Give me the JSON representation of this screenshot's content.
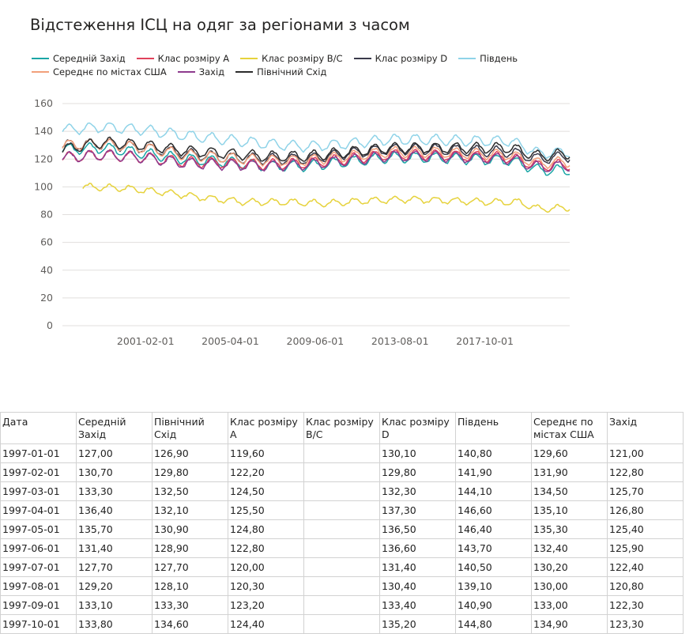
{
  "title": "Відстеження ІСЦ на одяг за регіонами з часом",
  "chart_data": {
    "type": "line",
    "title": "Відстеження ІСЦ на одяг за регіонами з часом",
    "x_ticks": [
      "2001-02-01",
      "2005-04-01",
      "2009-06-01",
      "2013-08-01",
      "2017-10-01"
    ],
    "y_ticks": [
      0,
      20,
      40,
      60,
      80,
      100,
      120,
      140,
      160
    ],
    "ylim": [
      0,
      160
    ],
    "xlim": [
      "1997-01-01",
      "2021-12-01"
    ],
    "grid": true,
    "legend_position": "top-left",
    "series": [
      {
        "name": "Середній Захід",
        "color": "#1aa6a6",
        "anchors": [
          [
            "1997-01-01",
            127
          ],
          [
            "1999-01-01",
            128
          ],
          [
            "2001-01-01",
            124
          ],
          [
            "2003-01-01",
            120
          ],
          [
            "2005-01-01",
            118
          ],
          [
            "2007-01-01",
            115
          ],
          [
            "2009-01-01",
            115
          ],
          [
            "2011-01-01",
            118
          ],
          [
            "2013-01-01",
            121
          ],
          [
            "2015-01-01",
            121
          ],
          [
            "2017-01-01",
            120
          ],
          [
            "2019-01-01",
            119
          ],
          [
            "2020-06-01",
            112
          ],
          [
            "2021-12-01",
            112
          ]
        ]
      },
      {
        "name": "Клас розміру A",
        "color": "#e0425b",
        "anchors": [
          [
            "1997-01-01",
            121
          ],
          [
            "1999-01-01",
            123
          ],
          [
            "2001-01-01",
            121
          ],
          [
            "2003-01-01",
            118
          ],
          [
            "2005-01-01",
            117
          ],
          [
            "2007-01-01",
            116
          ],
          [
            "2009-01-01",
            117
          ],
          [
            "2011-01-01",
            120
          ],
          [
            "2013-01-01",
            123
          ],
          [
            "2015-01-01",
            123
          ],
          [
            "2017-01-01",
            122
          ],
          [
            "2019-01-01",
            121
          ],
          [
            "2020-06-01",
            115
          ],
          [
            "2021-12-01",
            116
          ]
        ]
      },
      {
        "name": "Клас розміру B/C",
        "color": "#e6d23c",
        "anchors": [
          [
            "1998-01-01",
            100
          ],
          [
            "2000-01-01",
            99
          ],
          [
            "2002-01-01",
            96
          ],
          [
            "2004-01-01",
            92
          ],
          [
            "2006-01-01",
            89
          ],
          [
            "2008-01-01",
            89
          ],
          [
            "2010-01-01",
            88
          ],
          [
            "2012-01-01",
            90
          ],
          [
            "2014-01-01",
            91
          ],
          [
            "2016-01-01",
            90
          ],
          [
            "2018-01-01",
            89
          ],
          [
            "2019-06-01",
            89
          ],
          [
            "2020-06-01",
            84
          ],
          [
            "2021-12-01",
            85
          ]
        ]
      },
      {
        "name": "Клас розміру D",
        "color": "#3a3a4a",
        "anchors": [
          [
            "1997-01-01",
            130
          ],
          [
            "1999-01-01",
            131
          ],
          [
            "2001-01-01",
            128
          ],
          [
            "2003-01-01",
            124
          ],
          [
            "2005-01-01",
            121
          ],
          [
            "2007-01-01",
            120
          ],
          [
            "2009-01-01",
            120
          ],
          [
            "2011-01-01",
            124
          ],
          [
            "2013-01-01",
            127
          ],
          [
            "2015-01-01",
            127
          ],
          [
            "2017-01-01",
            126
          ],
          [
            "2019-01-01",
            125
          ],
          [
            "2020-06-01",
            120
          ],
          [
            "2021-12-01",
            122
          ]
        ]
      },
      {
        "name": "Південь",
        "color": "#8fd3e8",
        "anchors": [
          [
            "1997-01-01",
            141
          ],
          [
            "1999-01-01",
            143
          ],
          [
            "2001-01-01",
            141
          ],
          [
            "2003-01-01",
            137
          ],
          [
            "2005-01-01",
            134
          ],
          [
            "2007-01-01",
            131
          ],
          [
            "2009-01-01",
            129
          ],
          [
            "2011-01-01",
            131
          ],
          [
            "2013-01-01",
            134
          ],
          [
            "2015-01-01",
            134
          ],
          [
            "2017-01-01",
            133
          ],
          [
            "2019-01-01",
            133
          ],
          [
            "2020-06-01",
            124
          ],
          [
            "2021-12-01",
            125
          ]
        ]
      },
      {
        "name": "Середнє по містах США",
        "color": "#f2a07b",
        "anchors": [
          [
            "1997-01-01",
            130
          ],
          [
            "1999-01-01",
            131
          ],
          [
            "2001-01-01",
            128
          ],
          [
            "2003-01-01",
            123
          ],
          [
            "2005-01-01",
            121
          ],
          [
            "2007-01-01",
            119
          ],
          [
            "2009-01-01",
            119
          ],
          [
            "2011-01-01",
            122
          ],
          [
            "2013-01-01",
            125
          ],
          [
            "2015-01-01",
            125
          ],
          [
            "2017-01-01",
            124
          ],
          [
            "2019-01-01",
            123
          ],
          [
            "2020-06-01",
            117
          ],
          [
            "2021-12-01",
            118
          ]
        ]
      },
      {
        "name": "Захід",
        "color": "#8e3b8e",
        "anchors": [
          [
            "1997-01-01",
            121
          ],
          [
            "1999-01-01",
            123
          ],
          [
            "2001-01-01",
            121
          ],
          [
            "2003-01-01",
            117
          ],
          [
            "2005-01-01",
            116
          ],
          [
            "2007-01-01",
            115
          ],
          [
            "2009-01-01",
            116
          ],
          [
            "2011-01-01",
            119
          ],
          [
            "2013-01-01",
            122
          ],
          [
            "2015-01-01",
            122
          ],
          [
            "2017-01-01",
            121
          ],
          [
            "2019-01-01",
            120
          ],
          [
            "2020-06-01",
            114
          ],
          [
            "2021-12-01",
            115
          ]
        ]
      },
      {
        "name": "Північний Схід",
        "color": "#2b2b2b",
        "anchors": [
          [
            "1997-01-01",
            127
          ],
          [
            "1999-01-01",
            132
          ],
          [
            "2001-01-01",
            130
          ],
          [
            "2003-01-01",
            126
          ],
          [
            "2005-01-01",
            124
          ],
          [
            "2007-01-01",
            122
          ],
          [
            "2009-01-01",
            122
          ],
          [
            "2011-01-01",
            125
          ],
          [
            "2013-01-01",
            128
          ],
          [
            "2015-01-01",
            128
          ],
          [
            "2017-01-01",
            128
          ],
          [
            "2019-01-01",
            128
          ],
          [
            "2020-06-01",
            122
          ],
          [
            "2021-12-01",
            124
          ]
        ]
      }
    ]
  },
  "table": {
    "headers": [
      "Дата",
      "Середній Захід",
      "Північний Схід",
      "Клас розміру A",
      "Клас розміру B/C",
      "Клас розміру D",
      "Південь",
      "Середнє по містах США",
      "Захід"
    ],
    "rows": [
      [
        "1997-01-01",
        "127,00",
        "126,90",
        "119,60",
        "",
        "130,10",
        "140,80",
        "129,60",
        "121,00"
      ],
      [
        "1997-02-01",
        "130,70",
        "129,80",
        "122,20",
        "",
        "129,80",
        "141,90",
        "131,90",
        "122,80"
      ],
      [
        "1997-03-01",
        "133,30",
        "132,50",
        "124,50",
        "",
        "132,30",
        "144,10",
        "134,50",
        "125,70"
      ],
      [
        "1997-04-01",
        "136,40",
        "132,10",
        "125,50",
        "",
        "137,30",
        "146,60",
        "135,10",
        "126,80"
      ],
      [
        "1997-05-01",
        "135,70",
        "130,90",
        "124,80",
        "",
        "136,50",
        "146,40",
        "135,30",
        "125,40"
      ],
      [
        "1997-06-01",
        "131,40",
        "128,90",
        "122,80",
        "",
        "136,60",
        "143,70",
        "132,40",
        "125,90"
      ],
      [
        "1997-07-01",
        "127,70",
        "127,70",
        "120,00",
        "",
        "131,40",
        "140,50",
        "130,20",
        "122,40"
      ],
      [
        "1997-08-01",
        "129,20",
        "128,10",
        "120,30",
        "",
        "130,40",
        "139,10",
        "130,00",
        "120,80"
      ],
      [
        "1997-09-01",
        "133,10",
        "133,30",
        "123,20",
        "",
        "133,40",
        "140,90",
        "133,00",
        "122,30"
      ],
      [
        "1997-10-01",
        "133,80",
        "134,60",
        "124,40",
        "",
        "135,20",
        "144,80",
        "134,90",
        "123,30"
      ]
    ]
  }
}
